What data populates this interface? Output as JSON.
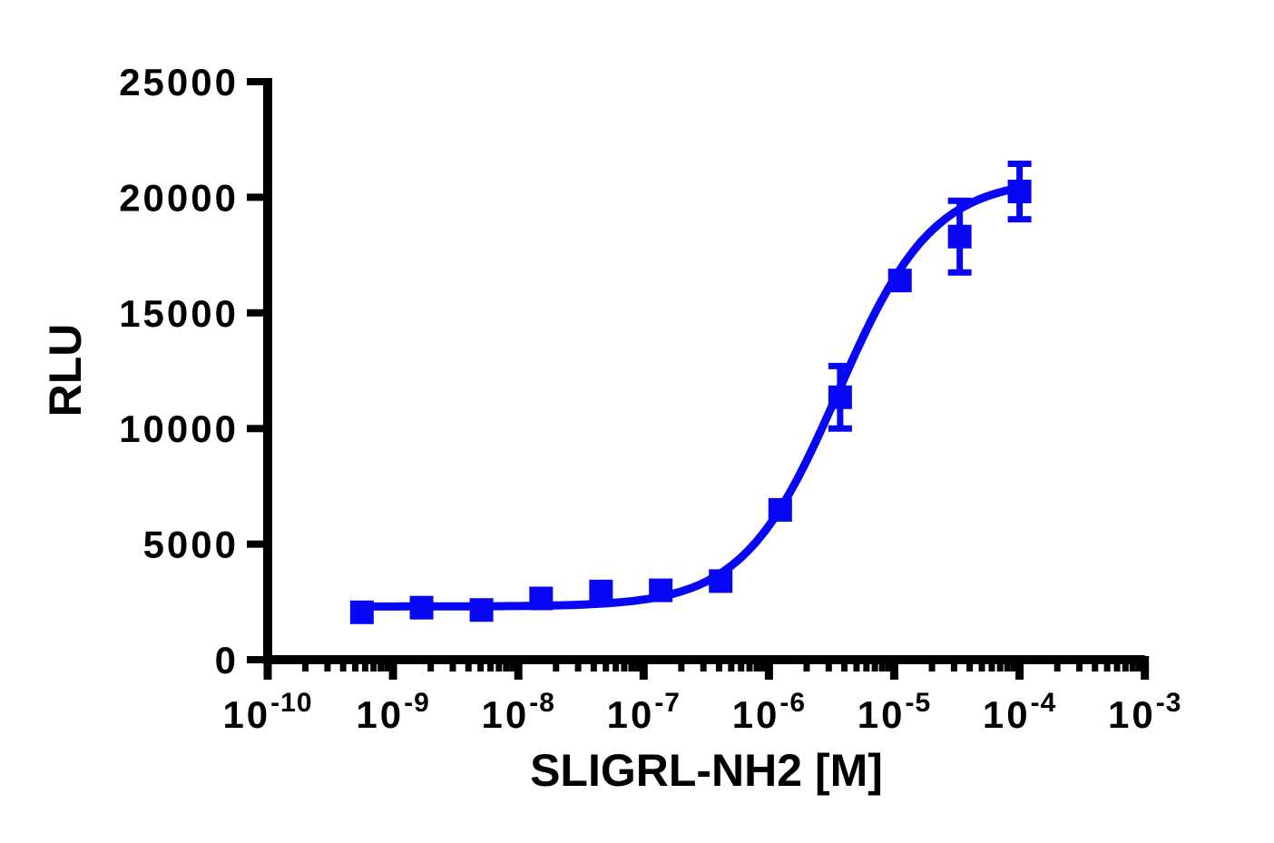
{
  "colors": {
    "background": "#FFFFFF",
    "axis": "#000000",
    "series": "#0707F5"
  },
  "chart_data": {
    "type": "scatter",
    "title": "",
    "xlabel": "SLIGRL-NH2 [M]",
    "ylabel": "RLU",
    "x_scale": "log10",
    "xlim_exponents": [
      -10,
      -3
    ],
    "ylim": [
      0,
      25000
    ],
    "y_ticks": [
      0,
      5000,
      10000,
      15000,
      20000,
      25000
    ],
    "x_tick_base": "10",
    "x_major_tick_exponents": [
      -10,
      -9,
      -8,
      -7,
      -6,
      -5,
      -4,
      -3
    ],
    "x_minor_ticks": "log_2_to_9_each_decade",
    "grid": false,
    "legend": false,
    "series": [
      {
        "name": "SLIGRL-NH2",
        "color": "#0707F5",
        "marker": "square",
        "points": [
          {
            "x": 5.65e-10,
            "y": 2050,
            "y_err": null
          },
          {
            "x": 1.69e-09,
            "y": 2250,
            "y_err": null
          },
          {
            "x": 5.08e-09,
            "y": 2150,
            "y_err": null
          },
          {
            "x": 1.52e-08,
            "y": 2650,
            "y_err": null
          },
          {
            "x": 4.57e-08,
            "y": 2950,
            "y_err": null
          },
          {
            "x": 1.37e-07,
            "y": 3000,
            "y_err": null
          },
          {
            "x": 4.12e-07,
            "y": 3400,
            "y_err": null
          },
          {
            "x": 1.23e-06,
            "y": 6480,
            "y_err": null
          },
          {
            "x": 3.7e-06,
            "y": 11350,
            "y_err": 1350
          },
          {
            "x": 1.11e-05,
            "y": 16400,
            "y_err": null
          },
          {
            "x": 3.33e-05,
            "y": 18300,
            "y_err": 1550
          },
          {
            "x": 0.0001,
            "y": 20250,
            "y_err": 1200
          }
        ]
      }
    ],
    "fit_curve": {
      "model": "four_parameter_logistic",
      "bottom": 2300,
      "top": 20800,
      "log_ec50": -5.45,
      "hill_slope": 1.15,
      "log_x_start": -9.25,
      "log_x_end": -4.0,
      "color": "#0707F5"
    }
  }
}
